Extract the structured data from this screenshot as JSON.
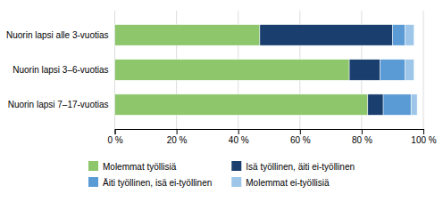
{
  "chart_data": {
    "type": "bar",
    "orientation": "horizontal",
    "stacked": true,
    "categories": [
      "Nuorin lapsi alle 3-vuotias",
      "Nuorin lapsi 3–6-vuotias",
      "Nuorin lapsi 7–17-vuotias"
    ],
    "series": [
      {
        "name": "Molemmat työllisiä",
        "color": "#8dc66b",
        "values": [
          47,
          76,
          82
        ]
      },
      {
        "name": "Isä työllinen, äiti ei-työllinen",
        "color": "#1a3f6f",
        "values": [
          43,
          10,
          5
        ]
      },
      {
        "name": "Äiti työllinen, isä ei-työllinen",
        "color": "#5b9bd5",
        "values": [
          4,
          8,
          9
        ]
      },
      {
        "name": "Molemmat ei-työllisiä",
        "color": "#9dc6e8",
        "values": [
          3,
          3,
          2
        ]
      }
    ],
    "xlim": [
      0,
      100
    ],
    "xticks": [
      {
        "value": 0,
        "label": "0 %"
      },
      {
        "value": 20,
        "label": "20 %"
      },
      {
        "value": 40,
        "label": "40 %"
      },
      {
        "value": 60,
        "label": "60 %"
      },
      {
        "value": 80,
        "label": "80 %"
      },
      {
        "value": 100,
        "label": "100 %"
      }
    ],
    "grid": true,
    "legend": "bottom"
  }
}
